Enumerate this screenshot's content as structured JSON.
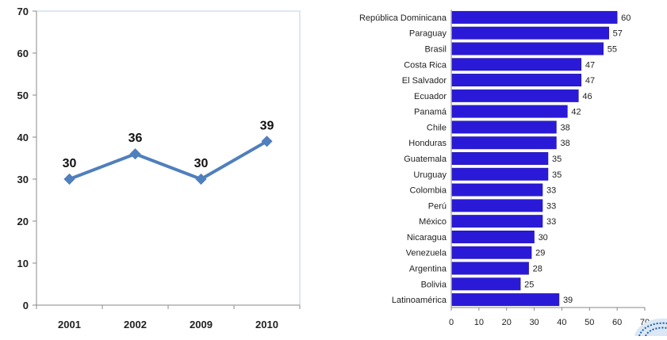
{
  "colors": {
    "line": "#4f7fbc",
    "bar": "#2a1ad8",
    "bar_edge": "#1a0fa0",
    "axis": "#8a8a8a",
    "left_plot_frame": "#b9d3ea"
  },
  "chart_data": [
    {
      "type": "line",
      "title": "",
      "xlabel": "",
      "ylabel": "",
      "x": [
        "2001",
        "2002",
        "2009",
        "2010"
      ],
      "values": [
        30,
        36,
        30,
        39
      ],
      "data_labels": [
        "30",
        "36",
        "30",
        "39"
      ],
      "ylim": [
        0,
        70
      ],
      "yticks": [
        "0",
        "10",
        "20",
        "30",
        "40",
        "50",
        "60",
        "70"
      ],
      "grid": false,
      "legend": "none"
    },
    {
      "type": "bar",
      "orientation": "horizontal",
      "title": "",
      "xlabel": "",
      "ylabel": "",
      "categories": [
        "República Dominicana",
        "Paraguay",
        "Brasil",
        "Costa Rica",
        "El Salvador",
        "Ecuador",
        "Panamá",
        "Chile",
        "Honduras",
        "Guatemala",
        "Uruguay",
        "Colombia",
        "Perú",
        "México",
        "Nicaragua",
        "Venezuela",
        "Argentina",
        "Bolivia",
        "Latinoamérica"
      ],
      "values": [
        60,
        57,
        55,
        47,
        47,
        46,
        42,
        38,
        38,
        35,
        35,
        33,
        33,
        33,
        30,
        29,
        28,
        25,
        39
      ],
      "data_labels": [
        "60",
        "57",
        "55",
        "47",
        "47",
        "46",
        "42",
        "38",
        "38",
        "35",
        "35",
        "33",
        "33",
        "33",
        "30",
        "29",
        "28",
        "25",
        "39"
      ],
      "xlim": [
        0,
        70
      ],
      "xticks": [
        "0",
        "10",
        "20",
        "30",
        "40",
        "50",
        "60",
        "70"
      ],
      "grid": false,
      "legend": "none"
    }
  ]
}
